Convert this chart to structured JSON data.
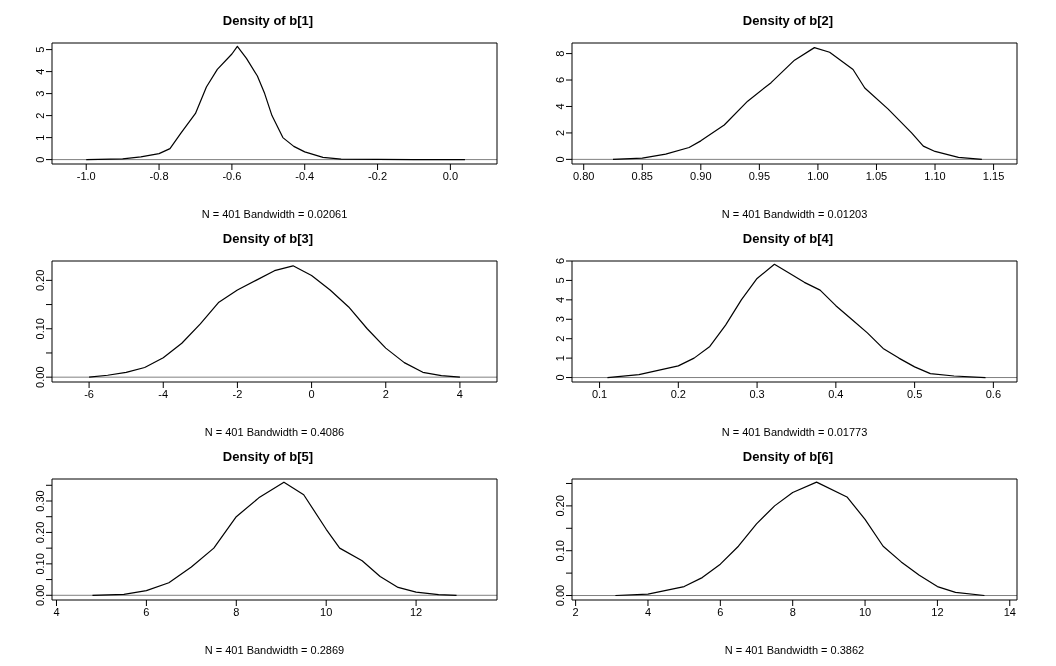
{
  "chart_data": [
    {
      "type": "line",
      "title": "Density of b[1]",
      "xlabel": "N = 401   Bandwidth = 0.02061",
      "x": [
        -1.0,
        -0.9,
        -0.85,
        -0.8,
        -0.77,
        -0.74,
        -0.7,
        -0.67,
        -0.64,
        -0.6,
        -0.585,
        -0.56,
        -0.53,
        -0.51,
        -0.49,
        -0.46,
        -0.43,
        -0.4,
        -0.35,
        -0.3,
        -0.2,
        -0.1,
        0.04
      ],
      "series": [
        {
          "color": "#000000",
          "values": [
            0,
            0.03,
            0.12,
            0.27,
            0.5,
            1.2,
            2.1,
            3.3,
            4.1,
            4.8,
            5.15,
            4.6,
            3.8,
            3.0,
            2.0,
            1.0,
            0.6,
            0.35,
            0.1,
            0.02,
            0.01,
            0,
            0
          ]
        }
      ],
      "xlim": [
        -1.094,
        0.128
      ],
      "ylim": [
        -0.2,
        5.3
      ],
      "xticks": [
        {
          "value": -1,
          "label": "-1.0"
        },
        {
          "value": -0.8,
          "label": "-0.8"
        },
        {
          "value": -0.6,
          "label": "-0.6"
        },
        {
          "value": -0.4,
          "label": "-0.4"
        },
        {
          "value": -0.2,
          "label": "-0.2"
        },
        {
          "value": 0,
          "label": "0.0"
        }
      ],
      "yticks": [
        0,
        1,
        2,
        3,
        4,
        5
      ],
      "ref_lines": [
        {
          "axis": "y",
          "value": 0,
          "color": "#808080"
        }
      ]
    },
    {
      "type": "line",
      "title": "Density of b[2]",
      "xlabel": "N = 401   Bandwidth = 0.01203",
      "x": [
        0.825,
        0.85,
        0.87,
        0.89,
        0.9,
        0.92,
        0.94,
        0.96,
        0.98,
        0.997,
        1.01,
        1.03,
        1.04,
        1.06,
        1.08,
        1.09,
        1.1,
        1.12,
        1.14
      ],
      "series": [
        {
          "color": "#000000",
          "values": [
            0,
            0.1,
            0.4,
            0.9,
            1.4,
            2.6,
            4.4,
            5.8,
            7.5,
            8.45,
            8.1,
            6.8,
            5.4,
            3.8,
            2.0,
            1.0,
            0.6,
            0.15,
            0
          ]
        }
      ],
      "xlim": [
        0.79,
        1.17
      ],
      "ylim": [
        -0.35,
        8.8
      ],
      "xticks": [
        {
          "value": 0.8,
          "label": "0.80"
        },
        {
          "value": 0.85,
          "label": "0.85"
        },
        {
          "value": 0.9,
          "label": "0.90"
        },
        {
          "value": 0.95,
          "label": "0.95"
        },
        {
          "value": 1,
          "label": "1.00"
        },
        {
          "value": 1.05,
          "label": "1.05"
        },
        {
          "value": 1.1,
          "label": "1.10"
        },
        {
          "value": 1.15,
          "label": "1.15"
        }
      ],
      "yticks": [
        0,
        2,
        4,
        6,
        8
      ],
      "ref_lines": [
        {
          "axis": "y",
          "value": 0,
          "color": "#808080"
        }
      ]
    },
    {
      "type": "line",
      "title": "Density of b[3]",
      "xlabel": "N = 401   Bandwidth = 0.4086",
      "x": [
        -6,
        -5.5,
        -5,
        -4.5,
        -4,
        -3.5,
        -3,
        -2.5,
        -2,
        -1.5,
        -1,
        -0.5,
        0,
        0.5,
        1,
        1.5,
        2,
        2.5,
        3,
        3.5,
        4
      ],
      "series": [
        {
          "color": "#000000",
          "values": [
            0,
            0.004,
            0.01,
            0.02,
            0.04,
            0.07,
            0.11,
            0.155,
            0.18,
            0.2,
            0.22,
            0.23,
            0.21,
            0.18,
            0.145,
            0.1,
            0.06,
            0.03,
            0.01,
            0.003,
            0
          ]
        }
      ],
      "xlim": [
        -7,
        5
      ],
      "ylim": [
        -0.01,
        0.24
      ],
      "xticks": [
        -6,
        -4,
        -2,
        0,
        2,
        4
      ],
      "yticks": [
        {
          "value": 0,
          "label": "0.00"
        },
        {
          "value": 0.05,
          "label": null
        },
        {
          "value": 0.1,
          "label": "0.10"
        },
        {
          "value": 0.15,
          "label": null
        },
        {
          "value": 0.2,
          "label": "0.20"
        }
      ],
      "ref_lines": [
        {
          "axis": "y",
          "value": 0,
          "color": "#808080"
        }
      ]
    },
    {
      "type": "line",
      "title": "Density of b[4]",
      "xlabel": "N = 401   Bandwidth = 0.01773",
      "x": [
        0.11,
        0.15,
        0.2,
        0.22,
        0.24,
        0.26,
        0.28,
        0.3,
        0.322,
        0.34,
        0.36,
        0.38,
        0.4,
        0.42,
        0.44,
        0.46,
        0.48,
        0.5,
        0.52,
        0.55,
        0.59
      ],
      "series": [
        {
          "color": "#000000",
          "values": [
            0,
            0.15,
            0.6,
            1.0,
            1.6,
            2.7,
            4.0,
            5.1,
            5.83,
            5.4,
            4.9,
            4.5,
            3.7,
            3.0,
            2.3,
            1.5,
            1.0,
            0.55,
            0.2,
            0.08,
            0
          ]
        }
      ],
      "xlim": [
        0.065,
        0.63
      ],
      "ylim": [
        -0.23,
        6.0
      ],
      "xticks": [
        0.1,
        0.2,
        0.3,
        0.4,
        0.5,
        0.6
      ],
      "yticks": [
        0,
        1,
        2,
        3,
        4,
        5,
        6
      ],
      "ref_lines": [
        {
          "axis": "y",
          "value": 0,
          "color": "#808080"
        }
      ]
    },
    {
      "type": "line",
      "title": "Density of b[5]",
      "xlabel": "N = 401   Bandwidth = 0.2869",
      "x": [
        4.8,
        5.5,
        6,
        6.5,
        7,
        7.5,
        8,
        8.5,
        9.06,
        9.5,
        10,
        10.3,
        10.8,
        11.2,
        11.6,
        12,
        12.5,
        12.9
      ],
      "series": [
        {
          "color": "#000000",
          "values": [
            0,
            0.003,
            0.015,
            0.04,
            0.09,
            0.15,
            0.25,
            0.31,
            0.36,
            0.32,
            0.21,
            0.15,
            0.11,
            0.06,
            0.025,
            0.01,
            0.002,
            0
          ]
        }
      ],
      "xlim": [
        3.9,
        13.8
      ],
      "ylim": [
        -0.015,
        0.37
      ],
      "xticks": [
        4,
        6,
        8,
        10,
        12
      ],
      "yticks": [
        {
          "value": 0,
          "label": "0.00"
        },
        {
          "value": 0.05,
          "label": null
        },
        {
          "value": 0.1,
          "label": "0.10"
        },
        {
          "value": 0.15,
          "label": null
        },
        {
          "value": 0.2,
          "label": "0.20"
        },
        {
          "value": 0.25,
          "label": null
        },
        {
          "value": 0.3,
          "label": "0.30"
        },
        {
          "value": 0.35,
          "label": null
        }
      ],
      "ref_lines": [
        {
          "axis": "y",
          "value": 0,
          "color": "#808080"
        }
      ]
    },
    {
      "type": "line",
      "title": "Density of b[6]",
      "xlabel": "N = 401   Bandwidth = 0.3862",
      "x": [
        3.1,
        4,
        5,
        5.5,
        6,
        6.5,
        7,
        7.5,
        8,
        8.66,
        9.5,
        10,
        10.5,
        11,
        11.5,
        12,
        12.5,
        13.3
      ],
      "series": [
        {
          "color": "#000000",
          "values": [
            0,
            0.003,
            0.02,
            0.04,
            0.07,
            0.11,
            0.16,
            0.2,
            0.23,
            0.253,
            0.22,
            0.17,
            0.11,
            0.075,
            0.045,
            0.02,
            0.007,
            0
          ]
        }
      ],
      "xlim": [
        1.9,
        14.2
      ],
      "ylim": [
        -0.01,
        0.26
      ],
      "xticks": [
        2,
        4,
        6,
        8,
        10,
        12,
        14
      ],
      "yticks": [
        {
          "value": 0,
          "label": "0.00"
        },
        {
          "value": 0.05,
          "label": null
        },
        {
          "value": 0.1,
          "label": "0.10"
        },
        {
          "value": 0.15,
          "label": null
        },
        {
          "value": 0.2,
          "label": "0.20"
        },
        {
          "value": 0.25,
          "label": null
        }
      ],
      "ref_lines": [
        {
          "axis": "y",
          "value": 0,
          "color": "#808080"
        }
      ]
    }
  ]
}
